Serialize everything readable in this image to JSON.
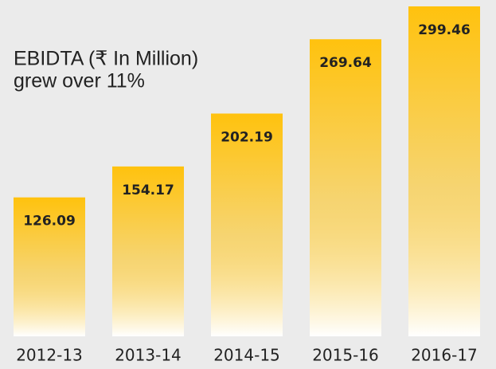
{
  "chart_data": {
    "type": "bar",
    "title": [
      "EBIDTA (₹ In Million)",
      "grew over 11%"
    ],
    "categories": [
      "2012-13",
      "2013-14",
      "2014-15",
      "2015-16",
      "2016-17"
    ],
    "values": [
      126.09,
      154.17,
      202.19,
      269.64,
      299.46
    ],
    "color": "#ffc20e"
  }
}
